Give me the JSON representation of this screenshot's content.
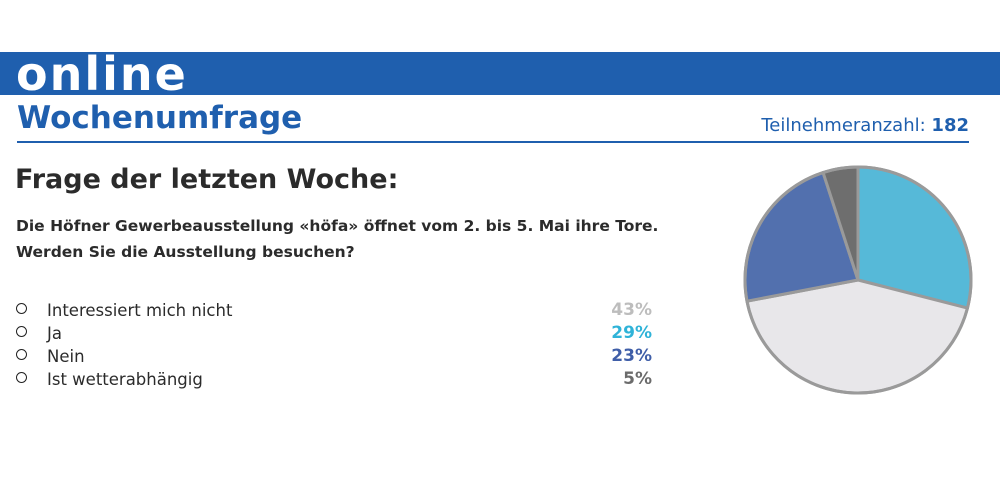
{
  "header": {
    "banner": "online",
    "title": "Wochenumfrage",
    "participants_label": "Teilnehmeranzahl:",
    "participants_count": "182"
  },
  "question": {
    "heading": "Frage der letzten Woche:",
    "line1": "Die Höfner Gewerbeausstellung «höfa» öffnet vom 2. bis 5. Mai ihre Tore.",
    "line2": "Werden Sie die Ausstellung besuchen?"
  },
  "answers": [
    {
      "label": "Interessiert mich nicht",
      "percent": "43%",
      "color": "#bdbdbd"
    },
    {
      "label": "Ja",
      "percent": "29%",
      "color": "#2fb3d8"
    },
    {
      "label": "Nein",
      "percent": "23%",
      "color": "#3f5ea8"
    },
    {
      "label": "Ist wetterabhängig",
      "percent": "5%",
      "color": "#6b6b6b"
    }
  ],
  "chart_data": {
    "type": "pie",
    "title": "",
    "categories": [
      "Ja",
      "Interessiert mich nicht",
      "Nein",
      "Ist wetterabhängig"
    ],
    "values": [
      29,
      43,
      23,
      5
    ],
    "colors": [
      "#56b9d8",
      "#e8e7ea",
      "#5270ae",
      "#6e6e6e"
    ],
    "border_color": "#9a9a9a",
    "start_angle_deg": 0,
    "direction": "clockwise"
  }
}
